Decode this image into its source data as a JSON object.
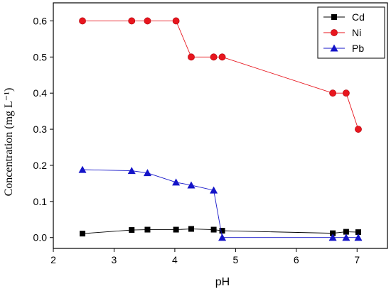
{
  "chart_data": {
    "type": "line",
    "title": "",
    "xlabel": "pH",
    "ylabel": "Concentration (mg L⁻¹)",
    "xlim": [
      2,
      7.5
    ],
    "ylim": [
      -0.03,
      0.65
    ],
    "xticks": [
      2,
      3,
      4,
      5,
      6,
      7
    ],
    "yticks": [
      0.0,
      0.1,
      0.2,
      0.3,
      0.4,
      0.5,
      0.6
    ],
    "ytick_labels": [
      "0.0",
      "0.1",
      "0.2",
      "0.3",
      "0.4",
      "0.5",
      "0.6"
    ],
    "grid": false,
    "legend_position": "top-right",
    "series": [
      {
        "name": "Cd",
        "color": "#000000",
        "marker": "square",
        "x": [
          2.48,
          3.29,
          3.55,
          4.02,
          4.27,
          4.64,
          4.78,
          6.6,
          6.82,
          7.02
        ],
        "y": [
          0.011,
          0.021,
          0.022,
          0.022,
          0.024,
          0.022,
          0.019,
          0.012,
          0.016,
          0.015
        ]
      },
      {
        "name": "Ni",
        "color": "#e8161e",
        "marker": "circle",
        "x": [
          2.48,
          3.29,
          3.55,
          4.02,
          4.27,
          4.64,
          4.78,
          6.6,
          6.82,
          7.02
        ],
        "y": [
          0.6,
          0.6,
          0.6,
          0.6,
          0.5,
          0.5,
          0.5,
          0.4,
          0.4,
          0.3
        ]
      },
      {
        "name": "Pb",
        "color": "#1414c8",
        "marker": "triangle",
        "x": [
          2.48,
          3.29,
          3.55,
          4.02,
          4.27,
          4.64,
          4.78,
          6.6,
          6.82,
          7.02
        ],
        "y": [
          0.188,
          0.185,
          0.179,
          0.153,
          0.145,
          0.131,
          0.0,
          0.0,
          0.0,
          0.0
        ]
      }
    ]
  }
}
